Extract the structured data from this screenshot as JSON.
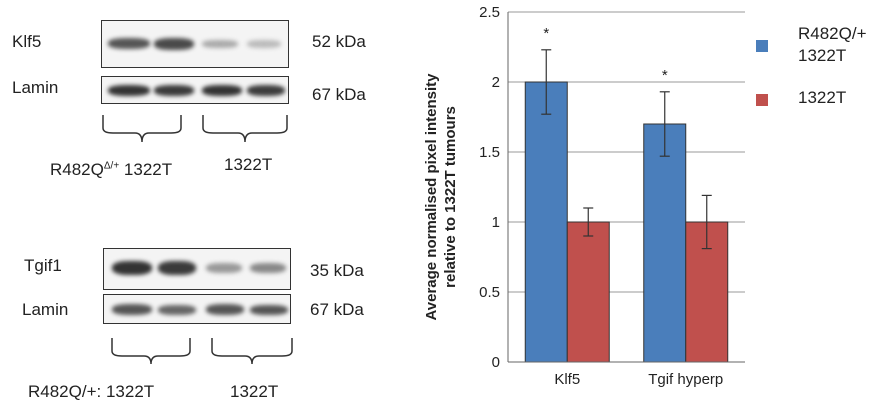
{
  "blots": {
    "top": {
      "row1_label": "Klf5",
      "row1_size": "52 kDa",
      "row2_label": "Lamin",
      "row2_size": "67 kDa",
      "group1_prefix": "R482Q",
      "group1_sup": "Δ/+",
      "group1_suffix": " 1322T",
      "group2": "1322T"
    },
    "bottom": {
      "row1_label": "Tgif1",
      "row1_size": "35 kDa",
      "row2_label": "Lamin",
      "row2_size": "67 kDa",
      "group1": "R482Q/+: 1322T",
      "group2": "1322T"
    }
  },
  "chart_data": {
    "type": "bar",
    "categories": [
      "Klf5",
      "Tgif hyperp"
    ],
    "series": [
      {
        "name": "R482Q/+ 1322T",
        "color": "#4a7ebb",
        "values": [
          2.0,
          1.7
        ],
        "errors": [
          0.23,
          0.23
        ]
      },
      {
        "name": "1322T",
        "color": "#c0504d",
        "values": [
          1.0,
          1.0
        ],
        "errors": [
          0.1,
          0.19
        ]
      }
    ],
    "significance": [
      "*",
      "*"
    ],
    "ylabel_line1": "Average normalised pixel intensity",
    "ylabel_line2": "relative to 1322T tumours",
    "ylim": [
      0,
      2.5
    ],
    "yticks": [
      "0",
      "0.5",
      "1",
      "1.5",
      "2",
      "2.5"
    ],
    "grid": true,
    "legend": "right",
    "legend_labels": [
      "R482Q/+",
      "1322T",
      "1322T"
    ]
  }
}
